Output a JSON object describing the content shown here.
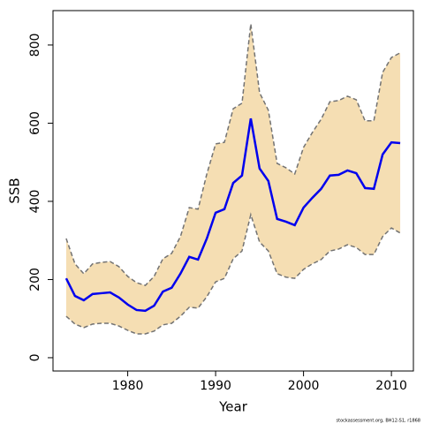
{
  "chart_data": {
    "type": "line",
    "xlabel": "Year",
    "ylabel": "SSB",
    "footer": "stockassessment.org, BH12-S1, r1868",
    "x": [
      1973,
      1974,
      1975,
      1976,
      1977,
      1978,
      1979,
      1980,
      1981,
      1982,
      1983,
      1984,
      1985,
      1986,
      1987,
      1988,
      1989,
      1990,
      1991,
      1992,
      1993,
      1994,
      1995,
      1996,
      1997,
      1998,
      1999,
      2000,
      2001,
      2002,
      2003,
      2004,
      2005,
      2006,
      2007,
      2008,
      2009,
      2010,
      2011
    ],
    "values": [
      203,
      158,
      147,
      163,
      165,
      167,
      154,
      136,
      122,
      120,
      133,
      169,
      179,
      215,
      258,
      251,
      305,
      371,
      380,
      447,
      466,
      612,
      484,
      452,
      355,
      348,
      339,
      384,
      409,
      432,
      466,
      468,
      479,
      472,
      434,
      432,
      520,
      551,
      549
    ],
    "upper": [
      305,
      240,
      215,
      240,
      244,
      246,
      233,
      208,
      192,
      185,
      208,
      253,
      267,
      310,
      384,
      380,
      470,
      547,
      551,
      637,
      651,
      854,
      678,
      633,
      497,
      486,
      470,
      538,
      576,
      610,
      655,
      658,
      669,
      660,
      606,
      606,
      730,
      768,
      780
    ],
    "lower": [
      106,
      86,
      77,
      86,
      88,
      88,
      81,
      70,
      61,
      61,
      68,
      84,
      88,
      106,
      129,
      127,
      156,
      194,
      203,
      253,
      273,
      366,
      296,
      273,
      215,
      206,
      203,
      226,
      240,
      251,
      273,
      278,
      289,
      282,
      264,
      264,
      310,
      332,
      319
    ],
    "color": "#0000ee",
    "band_color": "#f5deb3",
    "bound_color": "#737373",
    "xlim": [
      1971.5,
      2012.5
    ],
    "ylim": [
      -34,
      888
    ],
    "xticks": [
      1980,
      1990,
      2000,
      2010
    ],
    "yticks": [
      0,
      200,
      400,
      600,
      800
    ]
  }
}
